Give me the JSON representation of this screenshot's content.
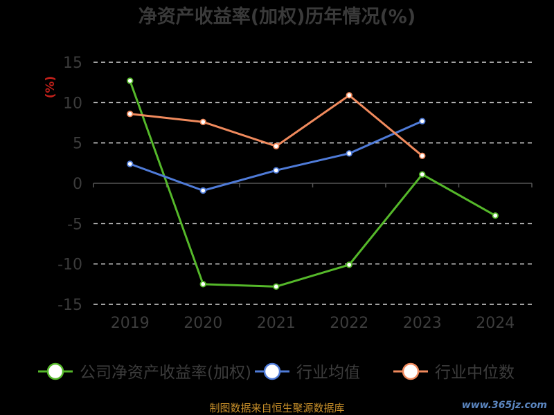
{
  "chart_data": {
    "type": "line",
    "title": "净资产收益率(加权)历年情况(%)",
    "ylabel": "(%)",
    "categories": [
      "2019",
      "2020",
      "2021",
      "2022",
      "2023",
      "2024"
    ],
    "ylim": [
      -15,
      15
    ],
    "yticks": [
      15,
      10,
      5,
      0,
      -5,
      -10,
      -15
    ],
    "grid": true,
    "legend_position": "bottom",
    "series": [
      {
        "name": "公司净资产收益率(加权)",
        "color": "#55b82a",
        "values": [
          12.7,
          -12.5,
          -12.8,
          -10.1,
          1.1,
          -4.0
        ]
      },
      {
        "name": "行业均值",
        "color": "#4f7bd8",
        "values": [
          2.4,
          -0.9,
          1.6,
          3.7,
          7.7,
          null
        ]
      },
      {
        "name": "行业中位数",
        "color": "#f08a5d",
        "values": [
          8.6,
          7.6,
          4.6,
          10.9,
          3.4,
          null
        ]
      }
    ]
  },
  "source": "制图数据来自恒生聚源数据库",
  "watermark": "www.365jz.com"
}
